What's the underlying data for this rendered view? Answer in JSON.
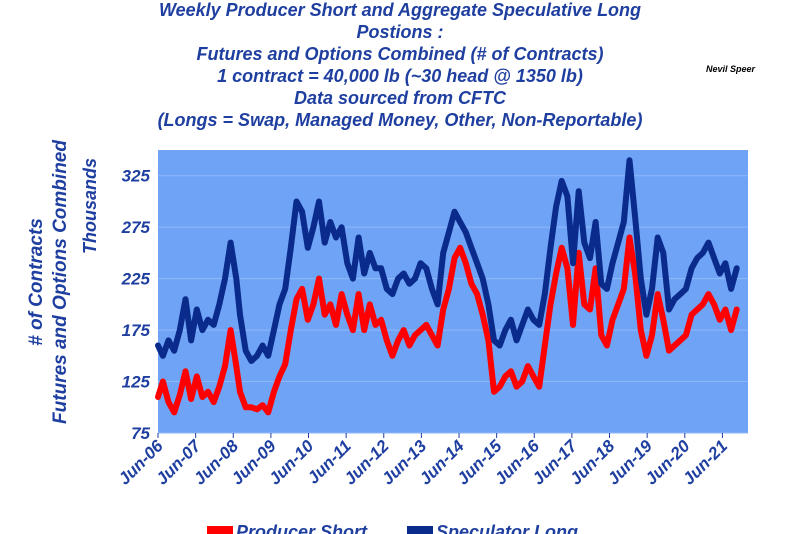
{
  "title_lines": [
    "Weekly Producer Short and Aggregate Speculative Long",
    "Postions :",
    "Futures and Options Combined (# of Contracts)",
    "1 contract = 40,000 lb (~30 head @ 1350 lb)",
    "Data sourced from CFTC",
    "(Longs = Swap, Managed Money, Other, Non-Reportable)"
  ],
  "author": "Nevil Speer",
  "colors": {
    "plot_bg": "#6fa3f5",
    "text": "#1f3fa0",
    "producer": "#ff0000",
    "speculator": "#0a2a8c"
  },
  "chart_data": {
    "type": "line",
    "ylabel_lines": [
      "# of Contracts",
      "Futures and Options Combined"
    ],
    "ylabel_units": "Thousands",
    "ylim": [
      75,
      350
    ],
    "yticks": [
      75,
      125,
      175,
      225,
      275,
      325
    ],
    "xlim": [
      2006.42,
      2022.1
    ],
    "xtick_labels": [
      "Jun-06",
      "Jun-07",
      "Jun-08",
      "Jun-09",
      "Jun-10",
      "Jun-11",
      "Jun-12",
      "Jun-13",
      "Jun-14",
      "Jun-15",
      "Jun-16",
      "Jun-17",
      "Jun-18",
      "Jun-19",
      "Jun-20",
      "Jun-21"
    ],
    "xtick_positions": [
      2006.42,
      2007.42,
      2008.42,
      2009.42,
      2010.42,
      2011.42,
      2012.42,
      2013.42,
      2014.42,
      2015.42,
      2016.42,
      2017.42,
      2018.42,
      2019.42,
      2020.42,
      2021.42
    ],
    "grid": true,
    "legend_position": "bottom",
    "series": [
      {
        "name": "Producer Short",
        "color": "#ff0000",
        "x": [
          2006.42,
          2006.55,
          2006.7,
          2006.85,
          2007.0,
          2007.15,
          2007.3,
          2007.45,
          2007.6,
          2007.75,
          2007.9,
          2008.05,
          2008.2,
          2008.35,
          2008.5,
          2008.6,
          2008.75,
          2008.9,
          2009.05,
          2009.2,
          2009.35,
          2009.5,
          2009.65,
          2009.8,
          2009.95,
          2010.1,
          2010.25,
          2010.4,
          2010.55,
          2010.7,
          2010.85,
          2011.0,
          2011.15,
          2011.3,
          2011.45,
          2011.6,
          2011.75,
          2011.9,
          2012.05,
          2012.2,
          2012.35,
          2012.5,
          2012.65,
          2012.8,
          2012.95,
          2013.1,
          2013.25,
          2013.4,
          2013.55,
          2013.7,
          2013.85,
          2014.0,
          2014.15,
          2014.3,
          2014.45,
          2014.6,
          2014.75,
          2014.9,
          2015.05,
          2015.2,
          2015.35,
          2015.5,
          2015.65,
          2015.8,
          2015.95,
          2016.1,
          2016.25,
          2016.4,
          2016.55,
          2016.7,
          2016.85,
          2017.0,
          2017.15,
          2017.3,
          2017.45,
          2017.6,
          2017.75,
          2017.9,
          2018.05,
          2018.2,
          2018.35,
          2018.5,
          2018.65,
          2018.8,
          2018.95,
          2019.1,
          2019.25,
          2019.4,
          2019.55,
          2019.7,
          2019.85,
          2020.0,
          2020.15,
          2020.3,
          2020.45,
          2020.6,
          2020.75,
          2020.9,
          2021.05,
          2021.2,
          2021.35,
          2021.5,
          2021.65,
          2021.8
        ],
        "values": [
          110,
          125,
          105,
          95,
          112,
          135,
          108,
          130,
          110,
          115,
          105,
          120,
          140,
          175,
          140,
          115,
          100,
          100,
          98,
          102,
          95,
          115,
          130,
          142,
          175,
          205,
          215,
          185,
          200,
          225,
          190,
          200,
          180,
          210,
          190,
          175,
          210,
          175,
          200,
          180,
          185,
          165,
          150,
          165,
          175,
          160,
          170,
          175,
          180,
          170,
          160,
          195,
          215,
          245,
          255,
          240,
          220,
          210,
          190,
          165,
          115,
          120,
          130,
          135,
          120,
          125,
          140,
          130,
          120,
          160,
          200,
          230,
          255,
          235,
          180,
          250,
          200,
          195,
          235,
          170,
          160,
          185,
          200,
          215,
          265,
          230,
          175,
          150,
          170,
          210,
          185,
          155,
          160,
          165,
          170,
          190,
          195,
          200,
          210,
          200,
          185,
          195,
          175,
          195
        ]
      },
      {
        "name": "Speculator Long",
        "color": "#0a2a8c",
        "x": [
          2006.42,
          2006.55,
          2006.7,
          2006.85,
          2007.0,
          2007.15,
          2007.3,
          2007.45,
          2007.6,
          2007.75,
          2007.9,
          2008.05,
          2008.2,
          2008.35,
          2008.5,
          2008.6,
          2008.75,
          2008.9,
          2009.05,
          2009.2,
          2009.35,
          2009.5,
          2009.65,
          2009.8,
          2009.95,
          2010.1,
          2010.25,
          2010.4,
          2010.55,
          2010.7,
          2010.85,
          2011.0,
          2011.15,
          2011.3,
          2011.45,
          2011.6,
          2011.75,
          2011.9,
          2012.05,
          2012.2,
          2012.35,
          2012.5,
          2012.65,
          2012.8,
          2012.95,
          2013.1,
          2013.25,
          2013.4,
          2013.55,
          2013.7,
          2013.85,
          2014.0,
          2014.15,
          2014.3,
          2014.45,
          2014.6,
          2014.75,
          2014.9,
          2015.05,
          2015.2,
          2015.35,
          2015.5,
          2015.65,
          2015.8,
          2015.95,
          2016.1,
          2016.25,
          2016.4,
          2016.55,
          2016.7,
          2016.85,
          2017.0,
          2017.15,
          2017.3,
          2017.45,
          2017.6,
          2017.75,
          2017.9,
          2018.05,
          2018.2,
          2018.35,
          2018.5,
          2018.65,
          2018.8,
          2018.95,
          2019.1,
          2019.25,
          2019.4,
          2019.55,
          2019.7,
          2019.85,
          2020.0,
          2020.15,
          2020.3,
          2020.45,
          2020.6,
          2020.75,
          2020.9,
          2021.05,
          2021.2,
          2021.35,
          2021.5,
          2021.65,
          2021.8
        ],
        "values": [
          160,
          150,
          165,
          155,
          175,
          205,
          165,
          195,
          175,
          185,
          180,
          200,
          225,
          260,
          225,
          190,
          155,
          145,
          150,
          160,
          150,
          175,
          200,
          215,
          255,
          300,
          290,
          255,
          275,
          300,
          260,
          280,
          265,
          275,
          240,
          225,
          265,
          230,
          250,
          235,
          235,
          215,
          210,
          225,
          230,
          220,
          225,
          240,
          235,
          215,
          200,
          250,
          270,
          290,
          280,
          270,
          255,
          240,
          225,
          200,
          165,
          160,
          175,
          185,
          165,
          180,
          195,
          185,
          180,
          210,
          255,
          295,
          320,
          305,
          240,
          310,
          260,
          245,
          280,
          220,
          215,
          240,
          260,
          280,
          340,
          285,
          225,
          190,
          215,
          265,
          250,
          195,
          205,
          210,
          215,
          235,
          245,
          250,
          260,
          245,
          230,
          240,
          215,
          235
        ]
      }
    ]
  }
}
